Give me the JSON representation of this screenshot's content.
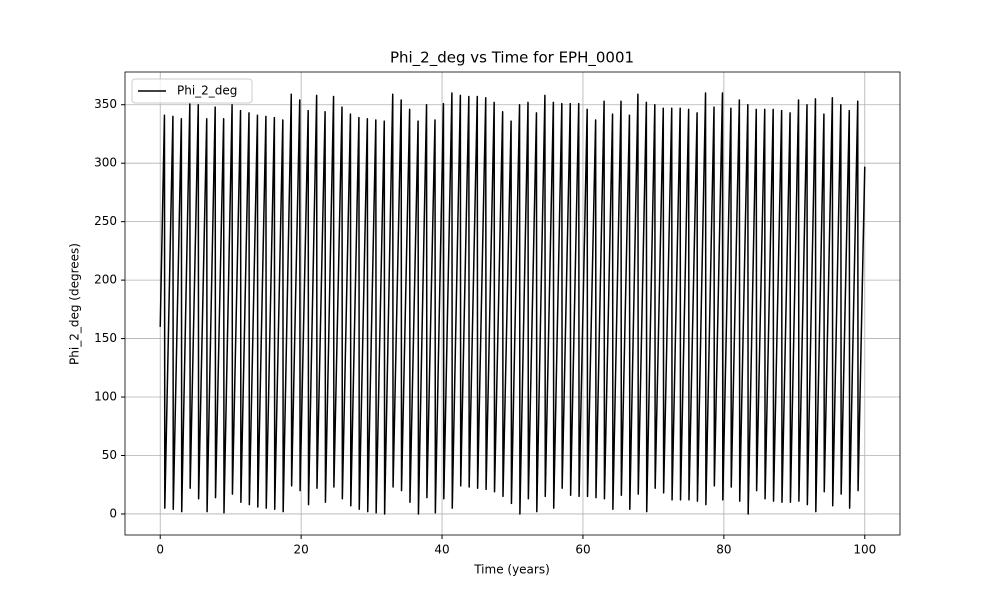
{
  "chart_data": {
    "type": "line",
    "title": "Phi_2_deg vs Time for EPH_0001",
    "x_label": "Time (years)",
    "y_label": "Phi_2_deg (degrees)",
    "xlim": [
      -5,
      105
    ],
    "ylim": [
      -18,
      378
    ],
    "xticks": [
      0,
      20,
      40,
      60,
      80,
      100
    ],
    "yticks": [
      0,
      50,
      100,
      150,
      200,
      250,
      300,
      350
    ],
    "grid": true,
    "legend": "upper left",
    "x": [
      0,
      0.6,
      0.65,
      1.8,
      1.85,
      3.0,
      3.05,
      4.2,
      4.25,
      5.4,
      5.45,
      6.6,
      6.65,
      7.8,
      7.85,
      9.0,
      9.05,
      10.2,
      10.25,
      11.4,
      11.45,
      12.6,
      12.65,
      13.8,
      13.85,
      15.0,
      15.05,
      16.2,
      16.25,
      17.4,
      17.45,
      18.6,
      18.65,
      19.8,
      19.85,
      21.0,
      21.05,
      22.2,
      22.25,
      23.4,
      23.45,
      24.6,
      24.65,
      25.8,
      25.85,
      27.0,
      27.05,
      28.2,
      28.25,
      29.4,
      29.45,
      30.6,
      30.65,
      31.8,
      31.85,
      33.0,
      33.05,
      34.2,
      34.25,
      35.4,
      35.45,
      36.6,
      36.65,
      37.8,
      37.85,
      39.0,
      39.05,
      40.2,
      40.25,
      41.4,
      41.45,
      42.6,
      42.65,
      43.8,
      43.85,
      45.0,
      45.05,
      46.2,
      46.25,
      47.4,
      47.45,
      48.6,
      48.65,
      49.8,
      49.85,
      51.0,
      51.05,
      52.2,
      52.25,
      53.4,
      53.45,
      54.6,
      54.65,
      55.8,
      55.85,
      57.0,
      57.05,
      58.2,
      58.25,
      59.4,
      59.45,
      60.6,
      60.65,
      61.8,
      61.85,
      63.0,
      63.05,
      64.2,
      64.25,
      65.4,
      65.45,
      66.6,
      66.65,
      67.8,
      67.85,
      69.0,
      69.05,
      70.2,
      70.25,
      71.4,
      71.45,
      72.6,
      72.65,
      73.8,
      73.85,
      75.0,
      75.05,
      76.2,
      76.25,
      77.4,
      77.45,
      78.6,
      78.65,
      79.8,
      79.85,
      81.0,
      81.05,
      82.2,
      82.25,
      83.4,
      83.45,
      84.6,
      84.65,
      85.8,
      85.85,
      87.0,
      87.05,
      88.2,
      88.25,
      89.4,
      89.45,
      90.6,
      90.65,
      91.8,
      91.85,
      93.0,
      93.05,
      94.2,
      94.25,
      95.4,
      95.45,
      96.6,
      96.65,
      97.8,
      97.85,
      99.0,
      99.05,
      100
    ],
    "series": [
      {
        "name": "Phi_2_deg",
        "color": "#000000",
        "values": [
          160,
          341,
          5,
          340,
          4,
          338,
          2,
          351,
          22,
          350,
          13,
          338,
          2,
          348,
          14,
          338,
          1,
          350,
          17,
          345,
          10,
          343,
          8,
          341,
          6,
          340,
          5,
          339,
          4,
          337,
          2,
          359,
          24,
          354,
          20,
          345,
          8,
          358,
          22,
          344,
          10,
          357,
          23,
          348,
          13,
          342,
          7,
          339,
          4,
          338,
          2,
          337,
          1,
          336,
          0,
          359,
          23,
          354,
          20,
          346,
          10,
          336,
          0,
          350,
          14,
          337,
          1,
          351,
          13,
          360,
          5,
          358,
          24,
          357,
          23,
          357,
          22,
          356,
          21,
          352,
          19,
          344,
          15,
          336,
          9,
          350,
          0,
          352,
          13,
          343,
          2,
          358,
          15,
          352,
          5,
          351,
          22,
          351,
          16,
          351,
          15,
          346,
          15,
          337,
          14,
          353,
          13,
          342,
          4,
          353,
          16,
          341,
          4,
          359,
          17,
          352,
          2,
          350,
          22,
          347,
          18,
          347,
          12,
          347,
          12,
          346,
          12,
          343,
          11,
          360,
          8,
          348,
          24,
          360,
          12,
          347,
          23,
          354,
          11,
          350,
          0,
          346,
          20,
          346,
          13,
          346,
          11,
          345,
          10,
          343,
          10,
          354,
          11,
          350,
          8,
          355,
          2,
          342,
          19,
          356,
          7,
          350,
          17,
          345,
          5,
          353,
          20,
          297
        ]
      }
    ]
  }
}
